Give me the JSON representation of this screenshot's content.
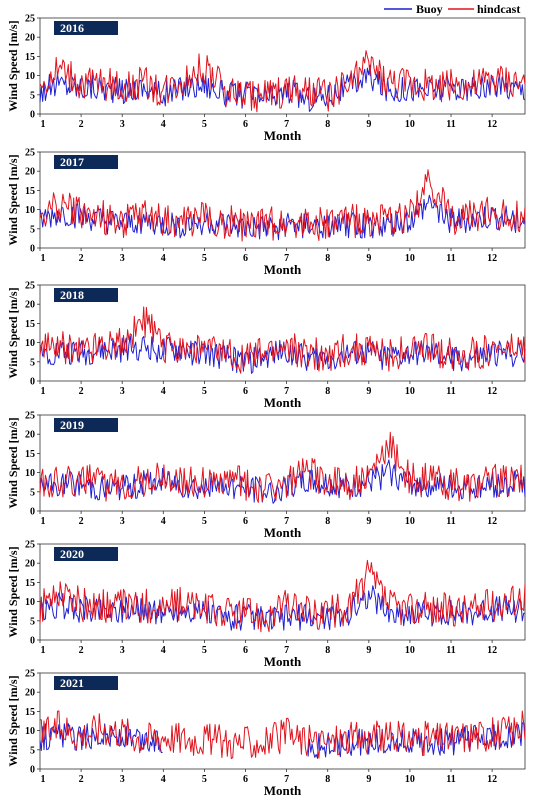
{
  "legend": {
    "items": [
      {
        "label": "Buoy",
        "color": "#1f1fd1"
      },
      {
        "label": "hindcast",
        "color": "#e0141e"
      }
    ]
  },
  "year_badge_color": "#0c2957",
  "chart_data": [
    {
      "type": "line",
      "year": "2016",
      "xlabel": "Month",
      "ylabel": "Wind Speed [m/s]",
      "xlim": [
        1,
        12.8
      ],
      "ylim": [
        0,
        25
      ],
      "xticks": [
        1,
        2,
        3,
        4,
        5,
        6,
        7,
        8,
        9,
        10,
        11,
        12
      ],
      "yticks": [
        0,
        5,
        10,
        15,
        20,
        25
      ],
      "series": [
        {
          "name": "Buoy",
          "x": [
            1,
            1.5,
            2,
            2.5,
            3,
            3.5,
            4,
            4.5,
            5,
            5.5,
            6,
            6.5,
            7,
            7.5,
            8,
            8.5,
            9,
            9.5,
            10,
            10.5,
            11,
            11.5,
            12,
            12.8
          ],
          "values": [
            6,
            8,
            7,
            7,
            6,
            7,
            5,
            7,
            8,
            5,
            5,
            4,
            6,
            4,
            5,
            7,
            10,
            6,
            7,
            6,
            7,
            6,
            7,
            7
          ]
        },
        {
          "name": "hindcast",
          "x": [
            1,
            1.5,
            2,
            2.5,
            3,
            3.5,
            4,
            4.5,
            5,
            5.5,
            6,
            6.5,
            7,
            7.5,
            8,
            8.5,
            9,
            9.5,
            10,
            10.5,
            11,
            11.5,
            12,
            12.8
          ],
          "values": [
            7,
            12,
            8,
            8,
            7,
            8,
            6,
            9,
            12,
            6,
            5,
            5,
            6,
            5,
            5,
            7,
            13,
            8,
            8,
            7,
            8,
            7,
            9,
            8
          ]
        }
      ]
    },
    {
      "type": "line",
      "year": "2017",
      "xlabel": "Month",
      "ylabel": "Wind Speed [m/s]",
      "xlim": [
        1,
        12.8
      ],
      "ylim": [
        0,
        25
      ],
      "xticks": [
        1,
        2,
        3,
        4,
        5,
        6,
        7,
        8,
        9,
        10,
        11,
        12
      ],
      "yticks": [
        0,
        5,
        10,
        15,
        20,
        25
      ],
      "series": [
        {
          "name": "Buoy",
          "x": [
            1,
            1.5,
            2,
            2.5,
            3,
            3.5,
            4,
            4.5,
            5,
            5.5,
            6,
            6.5,
            7,
            7.5,
            8,
            8.5,
            9,
            9.5,
            10,
            10.5,
            11,
            11.5,
            12,
            12.8
          ],
          "values": [
            7,
            9,
            8,
            7,
            6,
            7,
            6,
            6,
            7,
            6,
            5,
            5,
            6,
            6,
            5,
            6,
            6,
            6,
            7,
            12,
            7,
            7,
            8,
            7
          ]
        },
        {
          "name": "hindcast",
          "x": [
            1,
            1.5,
            2,
            2.5,
            3,
            3.5,
            4,
            4.5,
            5,
            5.5,
            6,
            6.5,
            7,
            7.5,
            8,
            8.5,
            9,
            9.5,
            10,
            10.5,
            11,
            11.5,
            12,
            12.8
          ],
          "values": [
            8,
            11,
            9,
            8,
            7,
            8,
            7,
            7,
            8,
            7,
            6,
            6,
            7,
            7,
            6,
            7,
            7,
            7,
            8,
            17,
            8,
            8,
            9,
            8
          ]
        }
      ]
    },
    {
      "type": "line",
      "year": "2018",
      "xlabel": "Month",
      "ylabel": "Wind Speed [m/s]",
      "xlim": [
        1,
        12.8
      ],
      "ylim": [
        0,
        25
      ],
      "xticks": [
        1,
        2,
        3,
        4,
        5,
        6,
        7,
        8,
        9,
        10,
        11,
        12
      ],
      "yticks": [
        0,
        5,
        10,
        15,
        20,
        25
      ],
      "series": [
        {
          "name": "Buoy",
          "x": [
            1,
            1.5,
            2,
            2.5,
            3,
            3.5,
            4,
            4.5,
            5,
            5.5,
            6,
            6.5,
            7,
            7.5,
            8,
            8.5,
            9,
            9.5,
            10,
            10.5,
            11,
            11.5,
            12,
            12.8
          ],
          "values": [
            7,
            8,
            7,
            8,
            8,
            9,
            8,
            8,
            7,
            6,
            5,
            6,
            8,
            6,
            6,
            7,
            7,
            6,
            7,
            7,
            6,
            6,
            7,
            7
          ]
        },
        {
          "name": "hindcast",
          "x": [
            1,
            1.5,
            2,
            2.5,
            3,
            3.5,
            4,
            4.5,
            5,
            5.5,
            6,
            6.5,
            7,
            7.5,
            8,
            8.5,
            9,
            9.5,
            10,
            10.5,
            11,
            11.5,
            12,
            12.8
          ],
          "values": [
            8,
            9,
            8,
            10,
            10,
            16,
            9,
            9,
            8,
            7,
            6,
            7,
            9,
            7,
            7,
            8,
            8,
            7,
            8,
            8,
            7,
            7,
            8,
            8
          ]
        }
      ]
    },
    {
      "type": "line",
      "year": "2019",
      "xlabel": "Month",
      "ylabel": "Wind Speed [m/s]",
      "xlim": [
        1,
        12.8
      ],
      "ylim": [
        0,
        25
      ],
      "xticks": [
        1,
        2,
        3,
        4,
        5,
        6,
        7,
        8,
        9,
        10,
        11,
        12
      ],
      "yticks": [
        0,
        5,
        10,
        15,
        20,
        25
      ],
      "series": [
        {
          "name": "Buoy",
          "x": [
            1,
            1.5,
            2,
            2.5,
            3,
            3.5,
            4,
            4.5,
            5,
            5.5,
            6,
            6.5,
            7,
            7.5,
            8,
            8.5,
            9,
            9.5,
            10,
            10.5,
            11,
            11.5,
            12,
            12.8
          ],
          "values": [
            6,
            7,
            7,
            6,
            6,
            7,
            8,
            7,
            6,
            7,
            6,
            5,
            6,
            8,
            7,
            6,
            7,
            10,
            7,
            7,
            6,
            6,
            7,
            7
          ]
        },
        {
          "name": "hindcast",
          "x": [
            1,
            1.5,
            2,
            2.5,
            3,
            3.5,
            4,
            4.5,
            5,
            5.5,
            6,
            6.5,
            7,
            7.5,
            8,
            8.5,
            9,
            9.5,
            10,
            10.5,
            11,
            11.5,
            12,
            12.8
          ],
          "values": [
            7,
            8,
            8,
            7,
            7,
            8,
            9,
            8,
            7,
            8,
            7,
            6,
            7,
            10,
            8,
            7,
            8,
            17,
            8,
            8,
            7,
            7,
            8,
            8
          ]
        }
      ]
    },
    {
      "type": "line",
      "year": "2020",
      "xlabel": "Month",
      "ylabel": "Wind Speed [m/s]",
      "xlim": [
        1,
        12.8
      ],
      "ylim": [
        0,
        25
      ],
      "xticks": [
        1,
        2,
        3,
        4,
        5,
        6,
        7,
        8,
        9,
        10,
        11,
        12
      ],
      "yticks": [
        0,
        5,
        10,
        15,
        20,
        25
      ],
      "series": [
        {
          "name": "Buoy",
          "x": [
            1,
            1.5,
            2,
            2.5,
            3,
            3.5,
            4,
            4.5,
            5,
            5.5,
            6,
            6.5,
            7,
            7.5,
            8,
            8.5,
            9,
            9.5,
            10,
            10.5,
            11,
            11.5,
            12,
            12.8
          ],
          "values": [
            7,
            9,
            8,
            8,
            8,
            8,
            7,
            8,
            7,
            6,
            6,
            5,
            6,
            6,
            6,
            7,
            12,
            7,
            7,
            7,
            7,
            7,
            8,
            8
          ]
        },
        {
          "name": "hindcast",
          "x": [
            1,
            1.5,
            2,
            2.5,
            3,
            3.5,
            4,
            4.5,
            5,
            5.5,
            6,
            6.5,
            7,
            7.5,
            8,
            8.5,
            9,
            9.5,
            10,
            10.5,
            11,
            11.5,
            12,
            12.8
          ],
          "values": [
            8,
            13,
            9,
            9,
            9,
            9,
            8,
            10,
            8,
            7,
            7,
            6,
            9,
            7,
            7,
            8,
            17,
            9,
            8,
            8,
            8,
            8,
            9,
            12
          ]
        }
      ]
    },
    {
      "type": "line",
      "year": "2021",
      "xlabel": "Month",
      "ylabel": "Wind Speed [m/s]",
      "xlim": [
        1,
        12.8
      ],
      "ylim": [
        0,
        25
      ],
      "xticks": [
        1,
        2,
        3,
        4,
        5,
        6,
        7,
        8,
        9,
        10,
        11,
        12
      ],
      "yticks": [
        0,
        5,
        10,
        15,
        20,
        25
      ],
      "series": [
        {
          "name": "Buoy",
          "x": [
            1,
            1.5,
            2,
            2.5,
            3,
            3.5,
            4,
            4.5,
            5,
            5.5,
            6,
            6.5,
            7,
            7.5,
            8,
            8.5,
            9,
            9.5,
            10,
            10.5,
            11,
            11.5,
            12,
            12.8
          ],
          "values": [
            8,
            9,
            8,
            9,
            8,
            7,
            7,
            null,
            null,
            null,
            null,
            null,
            null,
            6,
            6,
            7,
            7,
            7,
            7,
            7,
            7,
            8,
            8,
            9
          ]
        },
        {
          "name": "hindcast",
          "x": [
            1,
            1.5,
            2,
            2.5,
            3,
            3.5,
            4,
            4.5,
            5,
            5.5,
            6,
            6.5,
            7,
            7.5,
            8,
            8.5,
            9,
            9.5,
            10,
            10.5,
            11,
            11.5,
            12,
            12.8
          ],
          "values": [
            9,
            11,
            9,
            11,
            10,
            8,
            9,
            8,
            8,
            7,
            7,
            7,
            9,
            7,
            7,
            8,
            8,
            8,
            8,
            8,
            8,
            9,
            9,
            11
          ]
        }
      ]
    }
  ]
}
